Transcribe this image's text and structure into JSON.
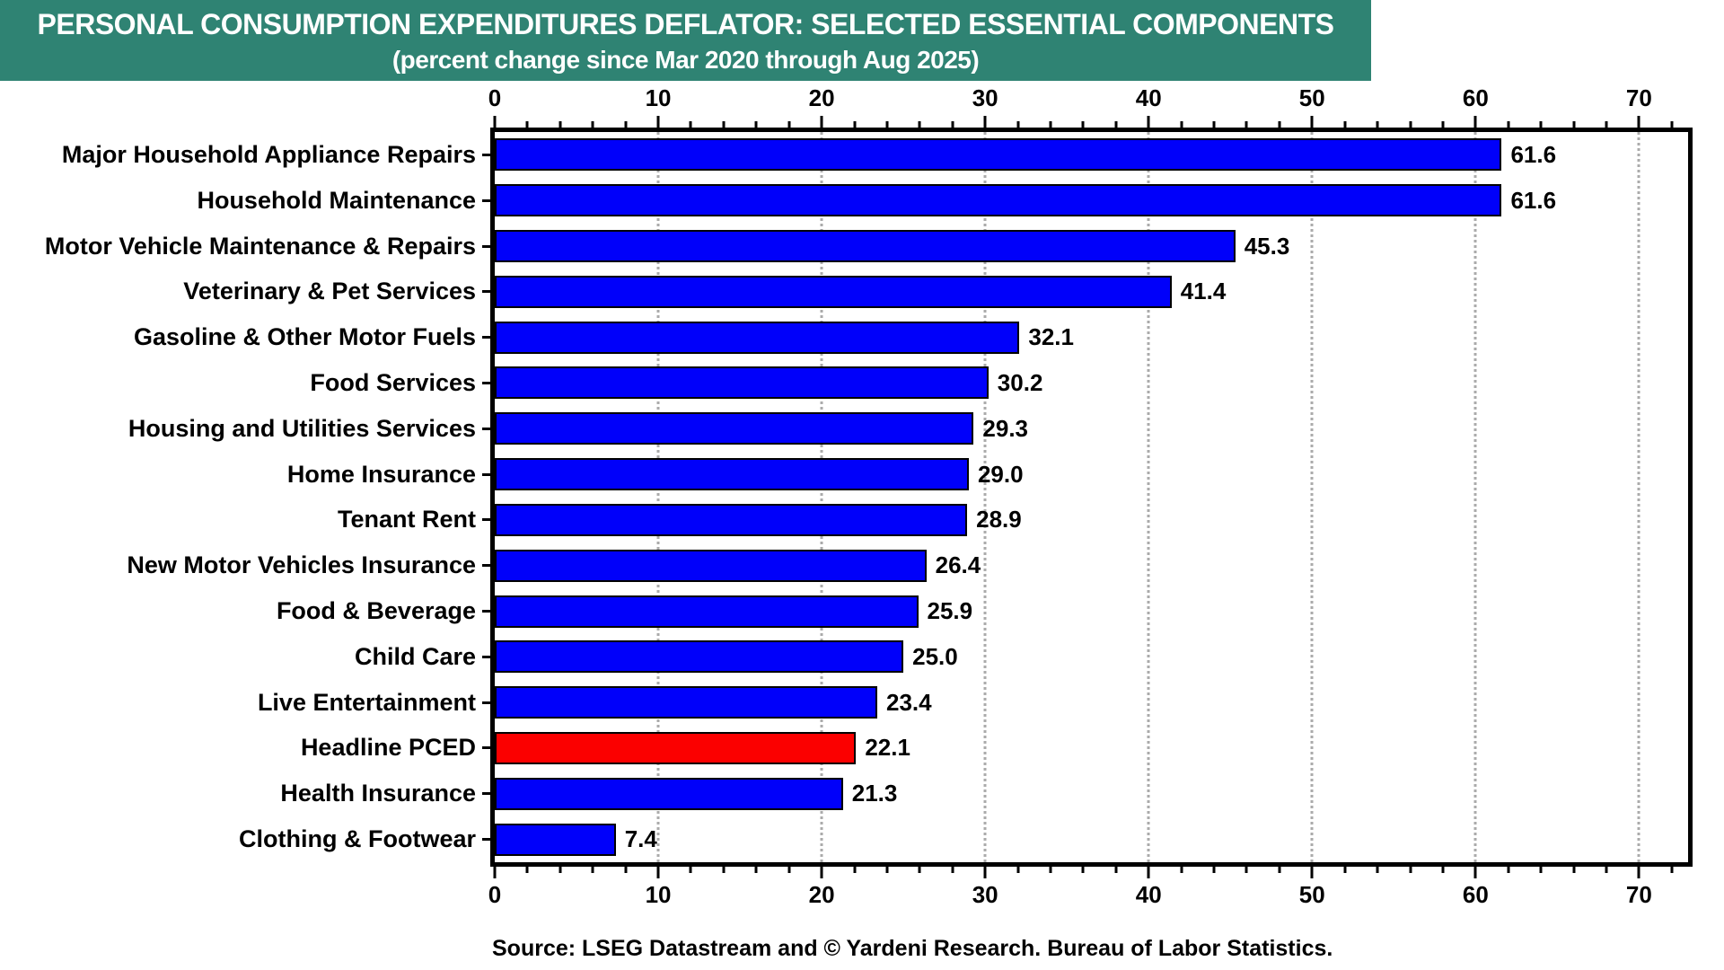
{
  "header": {
    "title_line1": "PERSONAL CONSUMPTION EXPENDITURES DEFLATOR: SELECTED ESSENTIAL COMPONENTS",
    "title_line2": "(percent change since Mar 2020 through Aug 2025)",
    "bg_color": "#2f8373",
    "text_color": "#ffffff"
  },
  "chart_data": {
    "type": "bar",
    "orientation": "horizontal",
    "title": "PERSONAL CONSUMPTION EXPENDITURES DEFLATOR: SELECTED ESSENTIAL COMPONENTS",
    "subtitle": "(percent change since Mar 2020 through Aug 2025)",
    "categories": [
      "Major Household Appliance Repairs",
      "Household Maintenance",
      "Motor Vehicle Maintenance & Repairs",
      "Veterinary & Pet Services",
      "Gasoline & Other Motor Fuels",
      "Food Services",
      "Housing and Utilities Services",
      "Home Insurance",
      "Tenant Rent",
      "New Motor Vehicles Insurance",
      "Food & Beverage",
      "Child Care",
      "Live Entertainment",
      "Headline PCED",
      "Health Insurance",
      "Clothing & Footwear"
    ],
    "values": [
      61.6,
      61.6,
      45.3,
      41.4,
      32.1,
      30.2,
      29.3,
      29.0,
      28.9,
      26.4,
      25.9,
      25.0,
      23.4,
      22.1,
      21.3,
      7.4
    ],
    "value_labels": [
      "61.6",
      "61.6",
      "45.3",
      "41.4",
      "32.1",
      "30.2",
      "29.3",
      "29.0",
      "28.9",
      "26.4",
      "25.9",
      "25.0",
      "23.4",
      "22.1",
      "21.3",
      "7.4"
    ],
    "highlight_index": 13,
    "bar_color_default": "#0000fa",
    "bar_color_highlight": "#fb0000",
    "axis": {
      "min": 0,
      "max": 73,
      "major_ticks": [
        0,
        10,
        20,
        30,
        40,
        50,
        60,
        70
      ],
      "minor_tick_step": 2,
      "gridlines": [
        10,
        20,
        30,
        40,
        50,
        60,
        70
      ],
      "grid_style": "vertical-dotted",
      "gridline_color": "#ababab"
    }
  },
  "footer": {
    "source": "Source: LSEG Datastream and © Yardeni Research. Bureau of Labor Statistics."
  }
}
